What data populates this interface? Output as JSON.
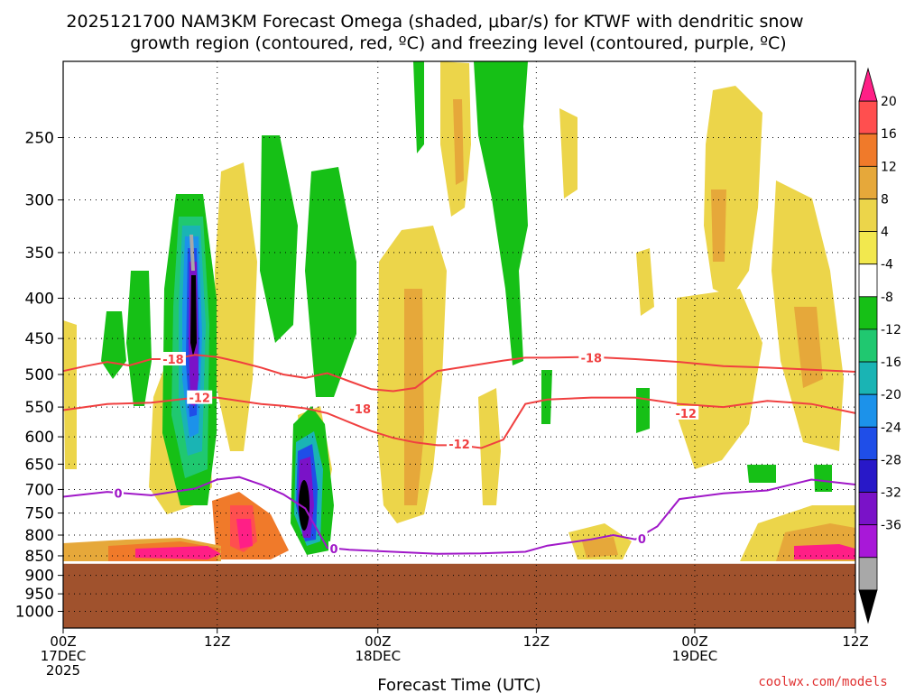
{
  "title": {
    "line1": "2025121700 NAM3KM Forecast Omega (shaded, μbar/s) for KTWF with dendritic snow",
    "line2": "growth region (contoured, red, ºC) and freezing level (contoured, purple, ºC)"
  },
  "xlabel": "Forecast Time (UTC)",
  "credit": "coolwx.com/models",
  "chart_data": {
    "type": "heatmap",
    "title": "2025121700 NAM3KM Forecast Omega (shaded, μbar/s) for KTWF with dendritic snow growth region (contoured, red, ºC) and freezing level (contoured, purple, ºC)",
    "xlabel": "Forecast Time (UTC)",
    "ylabel": "",
    "x_range_hours": [
      0,
      36
    ],
    "y_range_hPa": [
      1050,
      200
    ],
    "y_scale": "log",
    "grid": true,
    "x_ticks": [
      {
        "hour": 0,
        "l1": "00Z",
        "l2": "17DEC",
        "l3": "2025"
      },
      {
        "hour": 7,
        "l1": "12Z",
        "l2": "",
        "l3": ""
      },
      {
        "hour": 14.3,
        "l1": "00Z",
        "l2": "18DEC",
        "l3": ""
      },
      {
        "hour": 21.5,
        "l1": "12Z",
        "l2": "",
        "l3": ""
      },
      {
        "hour": 28.7,
        "l1": "00Z",
        "l2": "19DEC",
        "l3": ""
      },
      {
        "hour": 36,
        "l1": "12Z",
        "l2": "",
        "l3": ""
      }
    ],
    "y_ticks": [
      {
        "p": 250,
        "label": "250"
      },
      {
        "p": 300,
        "label": "300"
      },
      {
        "p": 350,
        "label": "350"
      },
      {
        "p": 400,
        "label": "400"
      },
      {
        "p": 450,
        "label": "450"
      },
      {
        "p": 500,
        "label": "500"
      },
      {
        "p": 550,
        "label": "550"
      },
      {
        "p": 600,
        "label": "600"
      },
      {
        "p": 650,
        "label": "650"
      },
      {
        "p": 700,
        "label": "700"
      },
      {
        "p": 750,
        "label": "750"
      },
      {
        "p": 800,
        "label": "800"
      },
      {
        "p": 850,
        "label": "850"
      },
      {
        "p": 900,
        "label": "900"
      },
      {
        "p": 950,
        "label": "950"
      },
      {
        "p": 1000,
        "label": "1000"
      }
    ],
    "colorbar": {
      "labels": [
        "20",
        "16",
        "12",
        "8",
        "4",
        "-4",
        "-8",
        "-12",
        "-16",
        "-20",
        "-24",
        "-28",
        "-32",
        "-36"
      ],
      "colors": [
        "#ff1f86",
        "#ff4f4f",
        "#f07a2a",
        "#e6a83a",
        "#ecd54a",
        "#f2e84e",
        "#ffffff",
        "#16c016",
        "#20c870",
        "#1ab4b4",
        "#1c92ea",
        "#1f4ee8",
        "#2818c8",
        "#7a12c8",
        "#a818d8",
        "#a8a8a8",
        "#000000"
      ]
    },
    "series": [
      {
        "name": "-18",
        "color": "#f04040",
        "points": [
          [
            0,
            495
          ],
          [
            1,
            488
          ],
          [
            2,
            482
          ],
          [
            3,
            487
          ],
          [
            4,
            478
          ],
          [
            5,
            478
          ],
          [
            6,
            472
          ],
          [
            7,
            475
          ],
          [
            8,
            482
          ],
          [
            9,
            490
          ],
          [
            10,
            500
          ],
          [
            11,
            505
          ],
          [
            12,
            498
          ],
          [
            13,
            510
          ],
          [
            14,
            522
          ],
          [
            15,
            525
          ],
          [
            16,
            520
          ],
          [
            17,
            495
          ],
          [
            18,
            490
          ],
          [
            19,
            485
          ],
          [
            20,
            480
          ],
          [
            21,
            476
          ],
          [
            22,
            476
          ],
          [
            24,
            475
          ],
          [
            26,
            478
          ],
          [
            28,
            482
          ],
          [
            30,
            488
          ],
          [
            32,
            490
          ],
          [
            34,
            493
          ],
          [
            36,
            496
          ]
        ]
      },
      {
        "name": "-12",
        "color": "#f04040",
        "points": [
          [
            0,
            555
          ],
          [
            2,
            545
          ],
          [
            4,
            543
          ],
          [
            6,
            535
          ],
          [
            7,
            535
          ],
          [
            8,
            540
          ],
          [
            9,
            545
          ],
          [
            10,
            548
          ],
          [
            11,
            552
          ],
          [
            12,
            560
          ],
          [
            13,
            575
          ],
          [
            14,
            590
          ],
          [
            15,
            602
          ],
          [
            16,
            610
          ],
          [
            17,
            615
          ],
          [
            18,
            615
          ],
          [
            19,
            620
          ],
          [
            20,
            605
          ],
          [
            21,
            545
          ],
          [
            22,
            538
          ],
          [
            24,
            535
          ],
          [
            26,
            535
          ],
          [
            28,
            545
          ],
          [
            30,
            550
          ],
          [
            32,
            540
          ],
          [
            34,
            545
          ],
          [
            36,
            560
          ]
        ]
      },
      {
        "name": "0",
        "color": "#a018c8",
        "points": [
          [
            0,
            715
          ],
          [
            2,
            705
          ],
          [
            4,
            712
          ],
          [
            6,
            698
          ],
          [
            7,
            680
          ],
          [
            8,
            675
          ],
          [
            9,
            690
          ],
          [
            10,
            710
          ],
          [
            11,
            740
          ],
          [
            12,
            830
          ],
          [
            13,
            835
          ],
          [
            15,
            840
          ],
          [
            17,
            845
          ],
          [
            19,
            844
          ],
          [
            21,
            840
          ],
          [
            22,
            825
          ],
          [
            24,
            810
          ],
          [
            25,
            800
          ],
          [
            26,
            810
          ],
          [
            27,
            780
          ],
          [
            28,
            720
          ],
          [
            30,
            708
          ],
          [
            32,
            702
          ],
          [
            34,
            680
          ],
          [
            36,
            690
          ]
        ]
      }
    ],
    "contour_labels": [
      {
        "text": "-18",
        "hour": 5,
        "p": 478
      },
      {
        "text": "-12",
        "hour": 6.2,
        "p": 535
      },
      {
        "text": "-18",
        "hour": 13.5,
        "p": 553
      },
      {
        "text": "-12",
        "hour": 18,
        "p": 613
      },
      {
        "text": "-18",
        "hour": 24,
        "p": 476
      },
      {
        "text": "-12",
        "hour": 28.3,
        "p": 560
      },
      {
        "text": "0",
        "hour": 2.5,
        "p": 708
      },
      {
        "text": "0",
        "hour": 12.3,
        "p": 832
      },
      {
        "text": "0",
        "hour": 26.3,
        "p": 808
      }
    ],
    "terrain_surface_hPa": 870
  }
}
